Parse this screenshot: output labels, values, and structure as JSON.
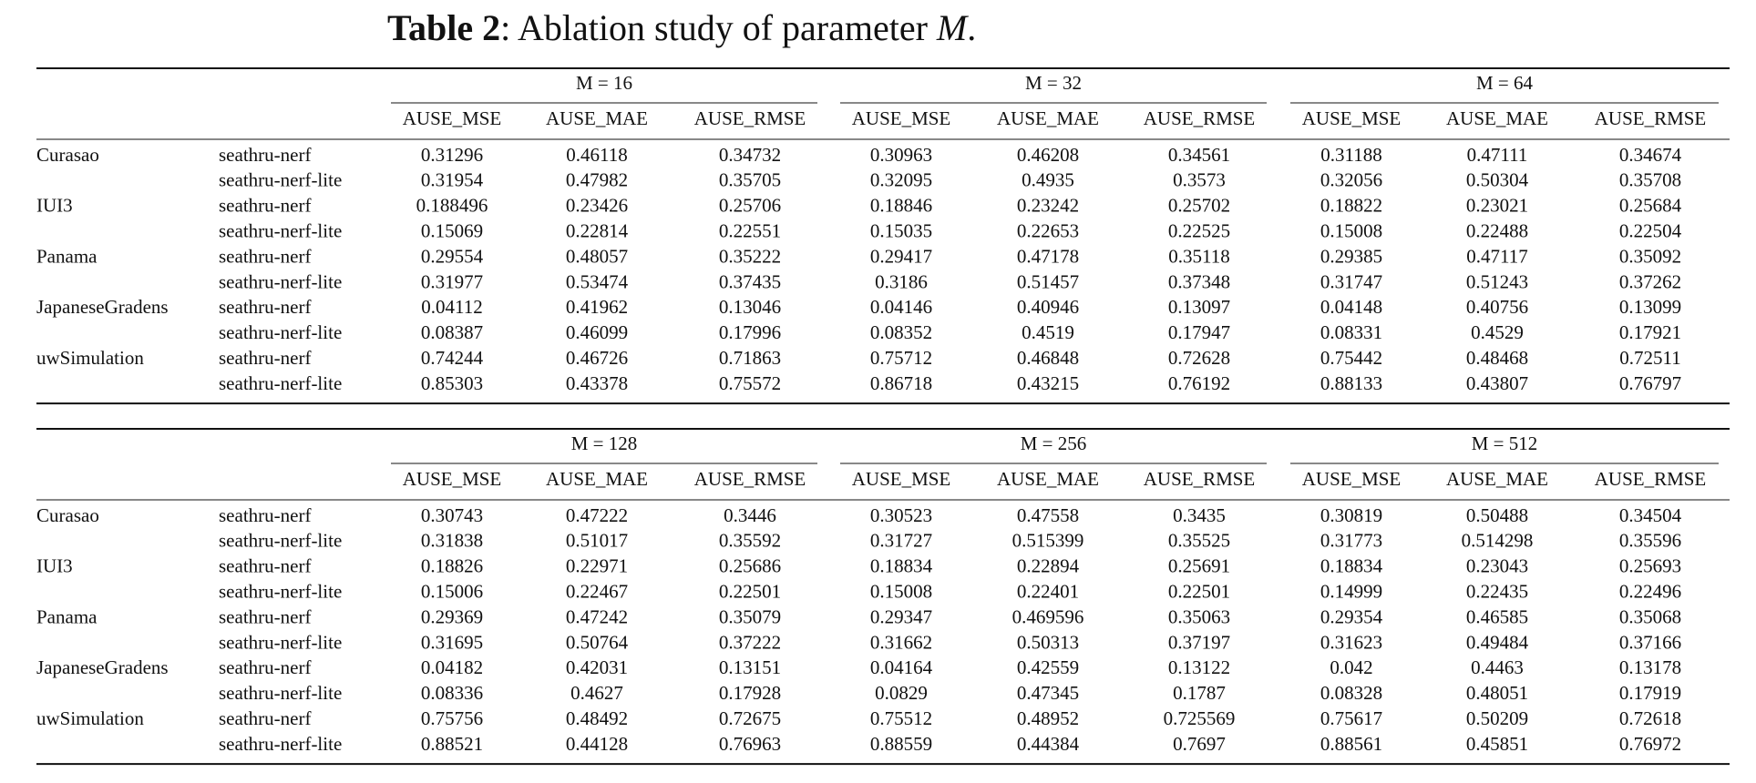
{
  "caption": {
    "label": "Table 2",
    "text": ": Ablation study of parameter",
    "symbol": "M",
    "end": "."
  },
  "tables": [
    {
      "groups": [
        "M = 16",
        "M = 32",
        "M = 64"
      ],
      "columns": [
        "AUSE_MSE",
        "AUSE_MAE",
        "AUSE_RMSE"
      ],
      "datasets": [
        {
          "name": "Curasao",
          "rows": [
            {
              "method": "seathru-nerf",
              "values": [
                0.31296,
                0.46118,
                0.34732,
                0.30963,
                0.46208,
                0.34561,
                0.31188,
                0.47111,
                0.34674
              ]
            },
            {
              "method": "seathru-nerf-lite",
              "values": [
                0.31954,
                0.47982,
                0.35705,
                0.32095,
                0.4935,
                0.3573,
                0.32056,
                0.50304,
                0.35708
              ]
            }
          ]
        },
        {
          "name": "IUI3",
          "rows": [
            {
              "method": "seathru-nerf",
              "values": [
                0.188496,
                0.23426,
                0.25706,
                0.18846,
                0.23242,
                0.25702,
                0.18822,
                0.23021,
                0.25684
              ]
            },
            {
              "method": "seathru-nerf-lite",
              "values": [
                0.15069,
                0.22814,
                0.22551,
                0.15035,
                0.22653,
                0.22525,
                0.15008,
                0.22488,
                0.22504
              ]
            }
          ]
        },
        {
          "name": "Panama",
          "rows": [
            {
              "method": "seathru-nerf",
              "values": [
                0.29554,
                0.48057,
                0.35222,
                0.29417,
                0.47178,
                0.35118,
                0.29385,
                0.47117,
                0.35092
              ]
            },
            {
              "method": "seathru-nerf-lite",
              "values": [
                0.31977,
                0.53474,
                0.37435,
                0.3186,
                0.51457,
                0.37348,
                0.31747,
                0.51243,
                0.37262
              ]
            }
          ]
        },
        {
          "name": "JapaneseGradens",
          "rows": [
            {
              "method": "seathru-nerf",
              "values": [
                0.04112,
                0.41962,
                0.13046,
                0.04146,
                0.40946,
                0.13097,
                0.04148,
                0.40756,
                0.13099
              ]
            },
            {
              "method": "seathru-nerf-lite",
              "values": [
                0.08387,
                0.46099,
                0.17996,
                0.08352,
                0.4519,
                0.17947,
                0.08331,
                0.4529,
                0.17921
              ]
            }
          ]
        },
        {
          "name": "uwSimulation",
          "rows": [
            {
              "method": "seathru-nerf",
              "values": [
                0.74244,
                0.46726,
                0.71863,
                0.75712,
                0.46848,
                0.72628,
                0.75442,
                0.48468,
                0.72511
              ]
            },
            {
              "method": "seathru-nerf-lite",
              "values": [
                0.85303,
                0.43378,
                0.75572,
                0.86718,
                0.43215,
                0.76192,
                0.88133,
                0.43807,
                0.76797
              ]
            }
          ]
        }
      ]
    },
    {
      "groups": [
        "M = 128",
        "M = 256",
        "M = 512"
      ],
      "columns": [
        "AUSE_MSE",
        "AUSE_MAE",
        "AUSE_RMSE"
      ],
      "datasets": [
        {
          "name": "Curasao",
          "rows": [
            {
              "method": "seathru-nerf",
              "values": [
                0.30743,
                0.47222,
                0.3446,
                0.30523,
                0.47558,
                0.3435,
                0.30819,
                0.50488,
                0.34504
              ]
            },
            {
              "method": "seathru-nerf-lite",
              "values": [
                0.31838,
                0.51017,
                0.35592,
                0.31727,
                0.515399,
                0.35525,
                0.31773,
                0.514298,
                0.35596
              ]
            }
          ]
        },
        {
          "name": "IUI3",
          "rows": [
            {
              "method": "seathru-nerf",
              "values": [
                0.18826,
                0.22971,
                0.25686,
                0.18834,
                0.22894,
                0.25691,
                0.18834,
                0.23043,
                0.25693
              ]
            },
            {
              "method": "seathru-nerf-lite",
              "values": [
                0.15006,
                0.22467,
                0.22501,
                0.15008,
                0.22401,
                0.22501,
                0.14999,
                0.22435,
                0.22496
              ]
            }
          ]
        },
        {
          "name": "Panama",
          "rows": [
            {
              "method": "seathru-nerf",
              "values": [
                0.29369,
                0.47242,
                0.35079,
                0.29347,
                0.469596,
                0.35063,
                0.29354,
                0.46585,
                0.35068
              ]
            },
            {
              "method": "seathru-nerf-lite",
              "values": [
                0.31695,
                0.50764,
                0.37222,
                0.31662,
                0.50313,
                0.37197,
                0.31623,
                0.49484,
                0.37166
              ]
            }
          ]
        },
        {
          "name": "JapaneseGradens",
          "rows": [
            {
              "method": "seathru-nerf",
              "values": [
                0.04182,
                0.42031,
                0.13151,
                0.04164,
                0.42559,
                0.13122,
                0.042,
                0.4463,
                0.13178
              ]
            },
            {
              "method": "seathru-nerf-lite",
              "values": [
                0.08336,
                0.4627,
                0.17928,
                0.0829,
                0.47345,
                0.1787,
                0.08328,
                0.48051,
                0.17919
              ]
            }
          ]
        },
        {
          "name": "uwSimulation",
          "rows": [
            {
              "method": "seathru-nerf",
              "values": [
                0.75756,
                0.48492,
                0.72675,
                0.75512,
                0.48952,
                0.725569,
                0.75617,
                0.50209,
                0.72618
              ]
            },
            {
              "method": "seathru-nerf-lite",
              "values": [
                0.88521,
                0.44128,
                0.76963,
                0.88559,
                0.44384,
                0.7697,
                0.88561,
                0.45851,
                0.76972
              ]
            }
          ]
        }
      ]
    }
  ]
}
